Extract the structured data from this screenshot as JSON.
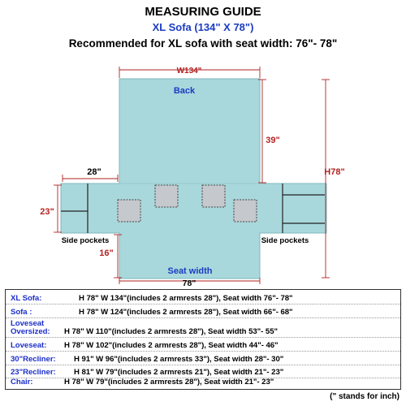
{
  "header": {
    "title": "MEASURING GUIDE",
    "subtitle": "XL Sofa (134\" X 78\")",
    "recommendation": "Recommended for XL sofa with seat width:  76\"- 78\""
  },
  "diagram": {
    "colors": {
      "cover": "#a9d8dc",
      "dimension": "#b22222",
      "label": "#1a3cc2",
      "pocket": "#c5c8cc"
    },
    "labels": {
      "back": "Back",
      "seat_width_label": "Seat width",
      "side_pockets_left": "Side pockets",
      "side_pockets_right": "Side pockets"
    },
    "dimensions": {
      "total_width": "W134\"",
      "back_drop": "39\"",
      "total_height": "H78\"",
      "armrest_width": "28\"",
      "armrest_height": "23\"",
      "front_drop": "16\"",
      "seat_width": "78\""
    }
  },
  "table": {
    "rows": [
      {
        "name": "XL Sofa:",
        "desc": "H 78\"  W 134\"(includes 2 armrests 28\"), Seat width 76\"- 78\""
      },
      {
        "name": "Sofa    :",
        "desc": "H 78\"  W 124\"(includes 2 armrests 28\"), Seat width 66\"- 68\""
      },
      {
        "name": "Loveseat Oversized:",
        "name_line1": "Loveseat",
        "name_line2": "Oversized:",
        "desc": "H 78\"  W 110\"(includes 2 armrests 28\"), Seat width 53\"- 55\""
      },
      {
        "name": "Loveseat:",
        "desc": "H 78\"  W 102\"(includes 2 armrests 28\"), Seat width 44\"- 46\""
      },
      {
        "name": "30\"Recliner:",
        "desc": "H 91\"  W 96\"(includes 2 armrests 33\"), Seat width 28\"- 30\""
      },
      {
        "name": "23\"Recliner:",
        "desc": "H 81\"  W 79\"(includes 2 armrests 21\"), Seat width 21\"- 23\""
      },
      {
        "name": "Chair:",
        "desc": "H 78\"  W 79\"(includes 2 armrests 28\"), Seat width 21\"- 23\""
      }
    ],
    "note": "(\" stands for inch)"
  }
}
